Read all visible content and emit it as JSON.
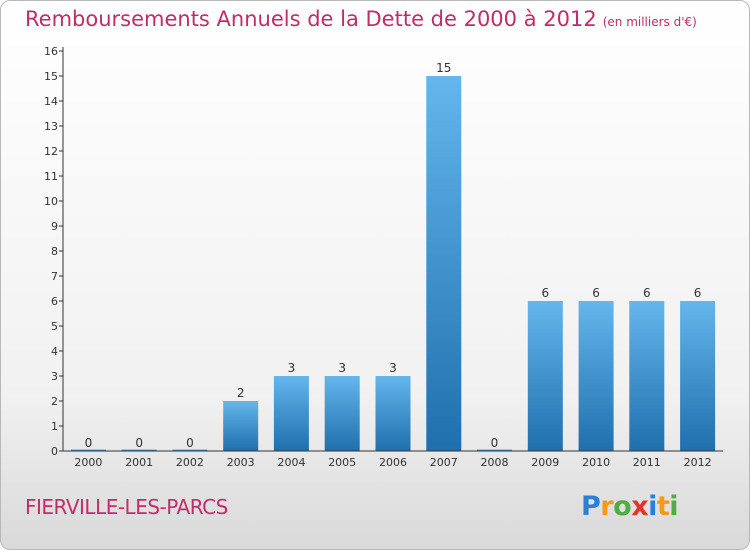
{
  "title": "Remboursements Annuels de la Dette de 2000 à 2012",
  "unit": "(en milliers d'€)",
  "commune": "FIERVILLE-LES-PARCS",
  "logo": {
    "letters": [
      "P",
      "r",
      "o",
      "x",
      "i",
      "t",
      "i"
    ],
    "colors": [
      "#2b7fd6",
      "#f29a1c",
      "#4caf3e",
      "#e1342b",
      "#2b7fd6",
      "#f29a1c",
      "#4caf3e"
    ]
  },
  "colors": {
    "bar_light": "#64b6ec",
    "bar_dark": "#1f6fad",
    "axis": "#333333",
    "title": "#c02d68"
  },
  "chart_data": {
    "type": "bar",
    "categories": [
      "2000",
      "2001",
      "2002",
      "2003",
      "2004",
      "2005",
      "2006",
      "2007",
      "2008",
      "2009",
      "2010",
      "2011",
      "2012"
    ],
    "values": [
      0,
      0,
      0,
      2,
      3,
      3,
      3,
      15,
      0,
      6,
      6,
      6,
      6
    ],
    "data_labels": [
      "0",
      "0",
      "0",
      "2",
      "3",
      "3",
      "3",
      "15",
      "0",
      "6",
      "6",
      "6",
      "6"
    ],
    "ylim": [
      0,
      16
    ],
    "yticks": [
      "0",
      "1",
      "2",
      "3",
      "4",
      "5",
      "6",
      "7",
      "8",
      "9",
      "10",
      "11",
      "12",
      "13",
      "14",
      "15",
      "16"
    ],
    "grid": false,
    "xlabel": "",
    "ylabel": ""
  }
}
